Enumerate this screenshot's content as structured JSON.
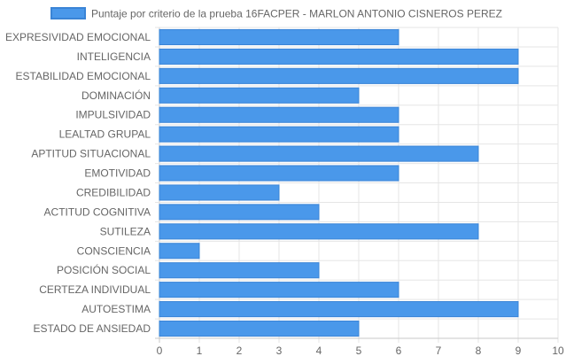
{
  "chart_data": {
    "type": "bar",
    "orientation": "horizontal",
    "legend": {
      "position": "top",
      "label": "Puntaje por criterio de la prueba 16FACPER - MARLON ANTONIO CISNEROS PEREZ"
    },
    "categories": [
      "EXPRESIVIDAD EMOCIONAL",
      "INTELIGENCIA",
      "ESTABILIDAD EMOCIONAL",
      "DOMINACIÓN",
      "IMPULSIVIDAD",
      "LEALTAD GRUPAL",
      "APTITUD SITUACIONAL",
      "EMOTIVIDAD",
      "CREDIBILIDAD",
      "ACTITUD COGNITIVA",
      "SUTILEZA",
      "CONSCIENCIA",
      "POSICIÓN SOCIAL",
      "CERTEZA INDIVIDUAL",
      "AUTOESTIMA",
      "ESTADO DE ANSIEDAD"
    ],
    "series": [
      {
        "name": "Puntaje por criterio de la prueba 16FACPER - MARLON ANTONIO CISNEROS PEREZ",
        "values": [
          6,
          9,
          9,
          5,
          6,
          6,
          8,
          6,
          3,
          4,
          8,
          1,
          4,
          6,
          9,
          5
        ]
      }
    ],
    "xlim": [
      0,
      10
    ],
    "xticks": [
      "0",
      "1",
      "2",
      "3",
      "4",
      "5",
      "6",
      "7",
      "8",
      "9",
      "10"
    ],
    "grid": true,
    "colors": {
      "bar_fill": "#4a98ea",
      "bar_stroke": "#3a84d6",
      "grid": "#e5e5e5",
      "axis": "#c8c8c8"
    }
  }
}
